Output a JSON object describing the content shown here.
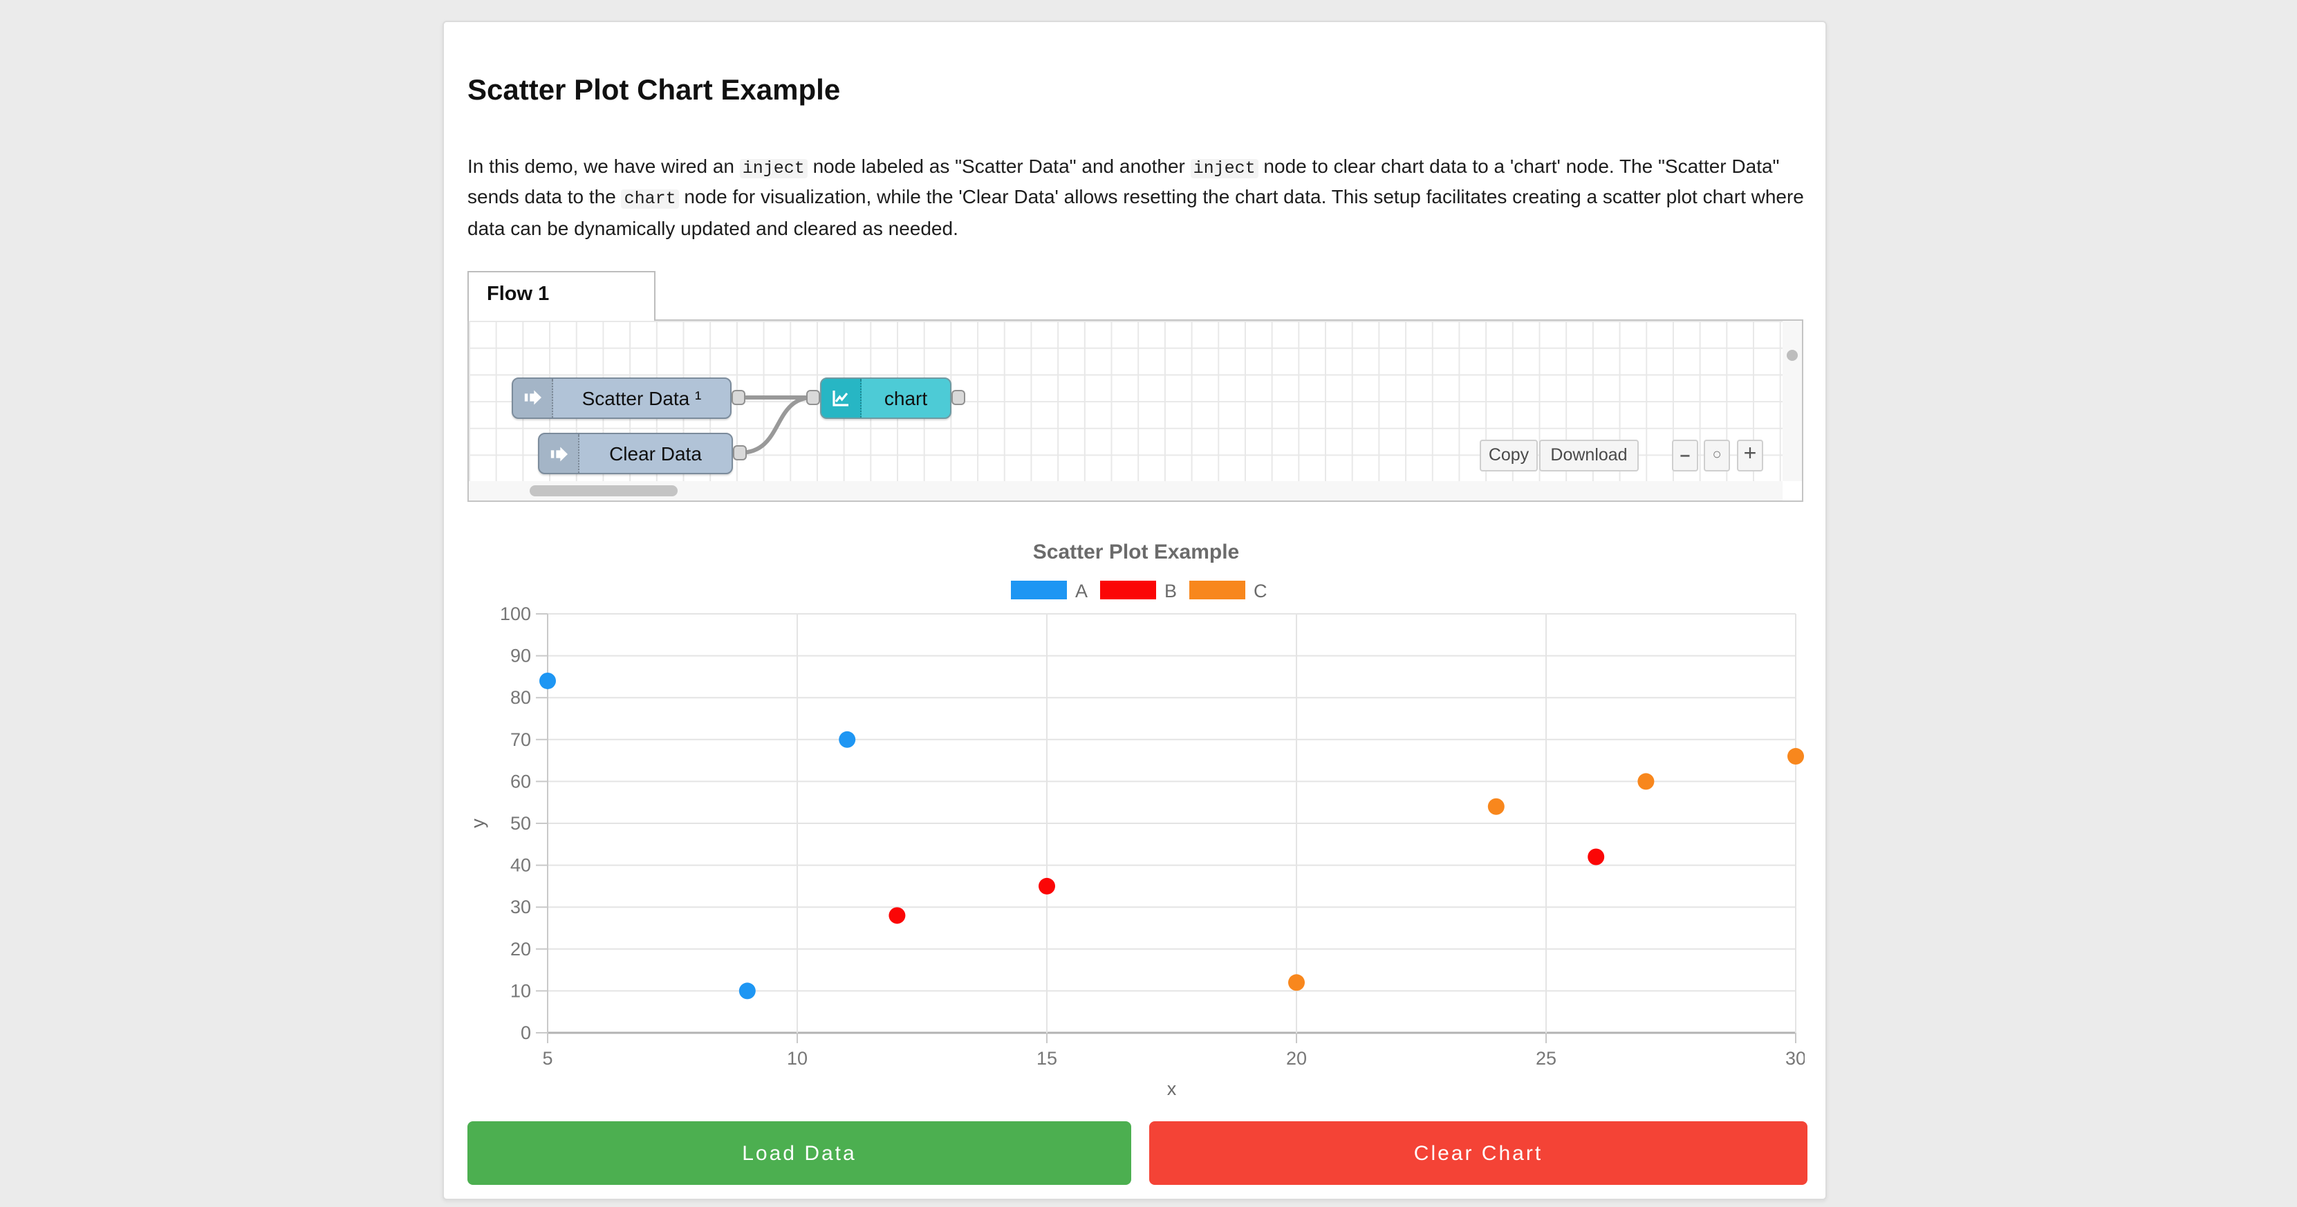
{
  "page": {
    "background": "#ebebeb"
  },
  "header": {
    "title": "Scatter Plot Chart Example"
  },
  "description": {
    "parts": [
      {
        "text": "In this demo, we have wired an ",
        "code": false
      },
      {
        "text": "inject",
        "code": true
      },
      {
        "text": " node labeled as \"Scatter Data\" and another ",
        "code": false
      },
      {
        "text": "inject",
        "code": true
      },
      {
        "text": " node to clear chart data to a 'chart' node. The \"Scatter Data\" sends data to the ",
        "code": false
      },
      {
        "text": "chart",
        "code": true
      },
      {
        "text": " node for visualization, while the 'Clear Data' allows resetting the chart data. This setup facilitates creating a scatter plot chart where data can be dynamically updated and cleared as needed.",
        "code": false
      }
    ]
  },
  "flow_editor": {
    "tab_label": "Flow 1",
    "nodes": [
      {
        "label": "Scatter Data ¹",
        "type": "inject",
        "color": "#b1c3d7"
      },
      {
        "label": "Clear Data",
        "type": "inject",
        "color": "#b1c3d7"
      },
      {
        "label": "chart",
        "type": "chart",
        "color": "#4dcbd6"
      }
    ],
    "toolbar": {
      "copy_label": "Copy",
      "download_label": "Download"
    },
    "zoom_controls": {
      "zoom_out": "−",
      "zoom_reset": "○",
      "zoom_in": "+"
    }
  },
  "chart_data": {
    "type": "scatter",
    "title": "Scatter Plot Example",
    "xlabel": "x",
    "ylabel": "y",
    "xlim": [
      5,
      30
    ],
    "ylim": [
      0,
      100
    ],
    "x_ticks": [
      5,
      10,
      15,
      20,
      25,
      30
    ],
    "y_ticks": [
      0,
      10,
      20,
      30,
      40,
      50,
      60,
      70,
      80,
      90,
      100
    ],
    "grid": true,
    "legend_position": "top",
    "series": [
      {
        "name": "A",
        "color": "#1e96f3",
        "points": [
          [
            5,
            84
          ],
          [
            9,
            10
          ],
          [
            11,
            70
          ]
        ]
      },
      {
        "name": "B",
        "color": "#fb0606",
        "points": [
          [
            12,
            28
          ],
          [
            15,
            35
          ],
          [
            26,
            42
          ]
        ]
      },
      {
        "name": "C",
        "color": "#f8871d",
        "points": [
          [
            20,
            12
          ],
          [
            24,
            54
          ],
          [
            27,
            60
          ],
          [
            30,
            66
          ]
        ]
      }
    ],
    "text_color": "#6b6b6b",
    "tick_color": "#777777",
    "grid_color": "#e4e4e4",
    "axis_color": "#c9c9c9",
    "zero_line_color": "#b3b3b3"
  },
  "footer": {
    "load_button": "Load Data",
    "clear_button": "Clear Chart",
    "load_color": "#4caf50",
    "clear_color": "#f44336"
  }
}
